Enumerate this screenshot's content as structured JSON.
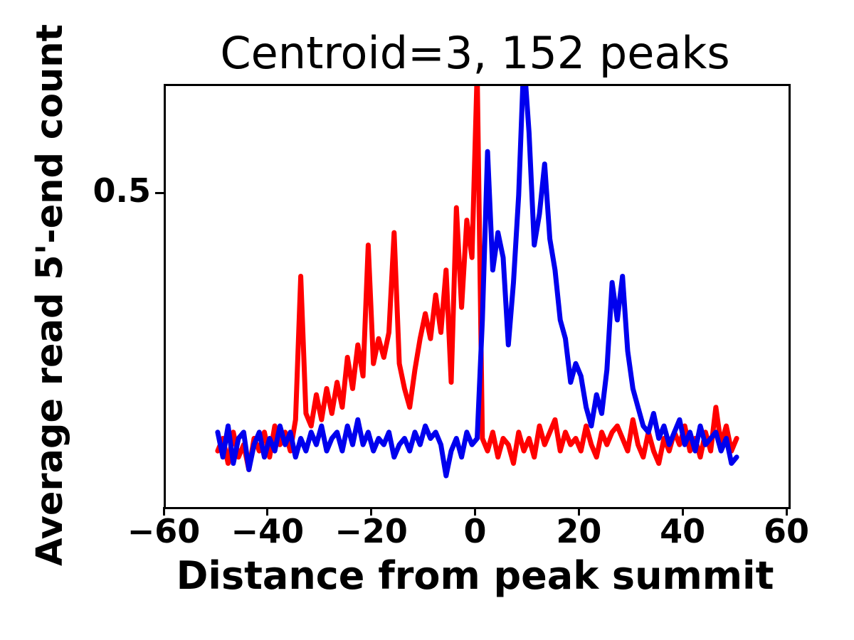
{
  "chart_data": {
    "type": "line",
    "title": "Centroid=3, 152 peaks",
    "xlabel": "Distance from peak summit",
    "ylabel": "Average read 5'-end count",
    "xlim": [
      -60,
      60
    ],
    "ylim": [
      0,
      0.675
    ],
    "grid": false,
    "legend": "none",
    "axis_color": "#000000",
    "background": "#ffffff",
    "xticks": [
      {
        "value": -60,
        "label": "−60"
      },
      {
        "value": -40,
        "label": "−40"
      },
      {
        "value": -20,
        "label": "−20"
      },
      {
        "value": 0,
        "label": "0"
      },
      {
        "value": 20,
        "label": "20"
      },
      {
        "value": 40,
        "label": "40"
      },
      {
        "value": 60,
        "label": "60"
      }
    ],
    "yticks": [
      {
        "value": 0.5,
        "label": "0.5"
      }
    ],
    "x": [
      -50,
      -49,
      -48,
      -47,
      -46,
      -45,
      -44,
      -43,
      -42,
      -41,
      -40,
      -39,
      -38,
      -37,
      -36,
      -35,
      -34,
      -33,
      -32,
      -31,
      -30,
      -29,
      -28,
      -27,
      -26,
      -25,
      -24,
      -23,
      -22,
      -21,
      -20,
      -19,
      -18,
      -17,
      -16,
      -15,
      -14,
      -13,
      -12,
      -11,
      -10,
      -9,
      -8,
      -7,
      -6,
      -5,
      -4,
      -3,
      -2,
      -1,
      0,
      1,
      2,
      3,
      4,
      5,
      6,
      7,
      8,
      9,
      10,
      11,
      12,
      13,
      14,
      15,
      16,
      17,
      18,
      19,
      20,
      21,
      22,
      23,
      24,
      25,
      26,
      27,
      28,
      29,
      30,
      31,
      32,
      33,
      34,
      35,
      36,
      37,
      38,
      39,
      40,
      41,
      42,
      43,
      44,
      45,
      46,
      47,
      48,
      49,
      50
    ],
    "series": [
      {
        "name": "series-red",
        "color": "#ff0000",
        "values": [
          0.09,
          0.11,
          0.07,
          0.12,
          0.08,
          0.1,
          0.06,
          0.11,
          0.09,
          0.12,
          0.08,
          0.13,
          0.1,
          0.12,
          0.09,
          0.14,
          0.37,
          0.15,
          0.13,
          0.18,
          0.14,
          0.19,
          0.15,
          0.2,
          0.16,
          0.24,
          0.19,
          0.26,
          0.21,
          0.42,
          0.23,
          0.27,
          0.24,
          0.28,
          0.44,
          0.23,
          0.19,
          0.16,
          0.22,
          0.27,
          0.31,
          0.27,
          0.34,
          0.28,
          0.38,
          0.2,
          0.48,
          0.32,
          0.46,
          0.4,
          0.7,
          0.11,
          0.09,
          0.12,
          0.08,
          0.11,
          0.1,
          0.07,
          0.12,
          0.09,
          0.11,
          0.08,
          0.13,
          0.1,
          0.12,
          0.14,
          0.09,
          0.12,
          0.1,
          0.11,
          0.09,
          0.13,
          0.1,
          0.08,
          0.12,
          0.1,
          0.12,
          0.13,
          0.11,
          0.09,
          0.14,
          0.1,
          0.08,
          0.12,
          0.09,
          0.07,
          0.11,
          0.09,
          0.12,
          0.1,
          0.13,
          0.09,
          0.11,
          0.08,
          0.12,
          0.09,
          0.16,
          0.1,
          0.13,
          0.09,
          0.11
        ]
      },
      {
        "name": "series-blue",
        "color": "#0000ee",
        "values": [
          0.12,
          0.08,
          0.13,
          0.07,
          0.11,
          0.12,
          0.06,
          0.1,
          0.12,
          0.08,
          0.11,
          0.09,
          0.13,
          0.1,
          0.12,
          0.08,
          0.11,
          0.09,
          0.12,
          0.1,
          0.13,
          0.09,
          0.11,
          0.12,
          0.09,
          0.13,
          0.1,
          0.14,
          0.1,
          0.12,
          0.09,
          0.11,
          0.1,
          0.12,
          0.08,
          0.1,
          0.11,
          0.09,
          0.12,
          0.1,
          0.13,
          0.11,
          0.12,
          0.1,
          0.05,
          0.09,
          0.11,
          0.08,
          0.12,
          0.1,
          0.11,
          0.3,
          0.57,
          0.38,
          0.44,
          0.4,
          0.26,
          0.36,
          0.5,
          0.72,
          0.6,
          0.42,
          0.47,
          0.55,
          0.43,
          0.38,
          0.3,
          0.27,
          0.2,
          0.23,
          0.21,
          0.16,
          0.13,
          0.18,
          0.15,
          0.22,
          0.36,
          0.3,
          0.37,
          0.25,
          0.19,
          0.16,
          0.13,
          0.12,
          0.15,
          0.11,
          0.13,
          0.1,
          0.12,
          0.14,
          0.1,
          0.12,
          0.09,
          0.13,
          0.1,
          0.11,
          0.12,
          0.09,
          0.11,
          0.07,
          0.08
        ]
      }
    ]
  }
}
